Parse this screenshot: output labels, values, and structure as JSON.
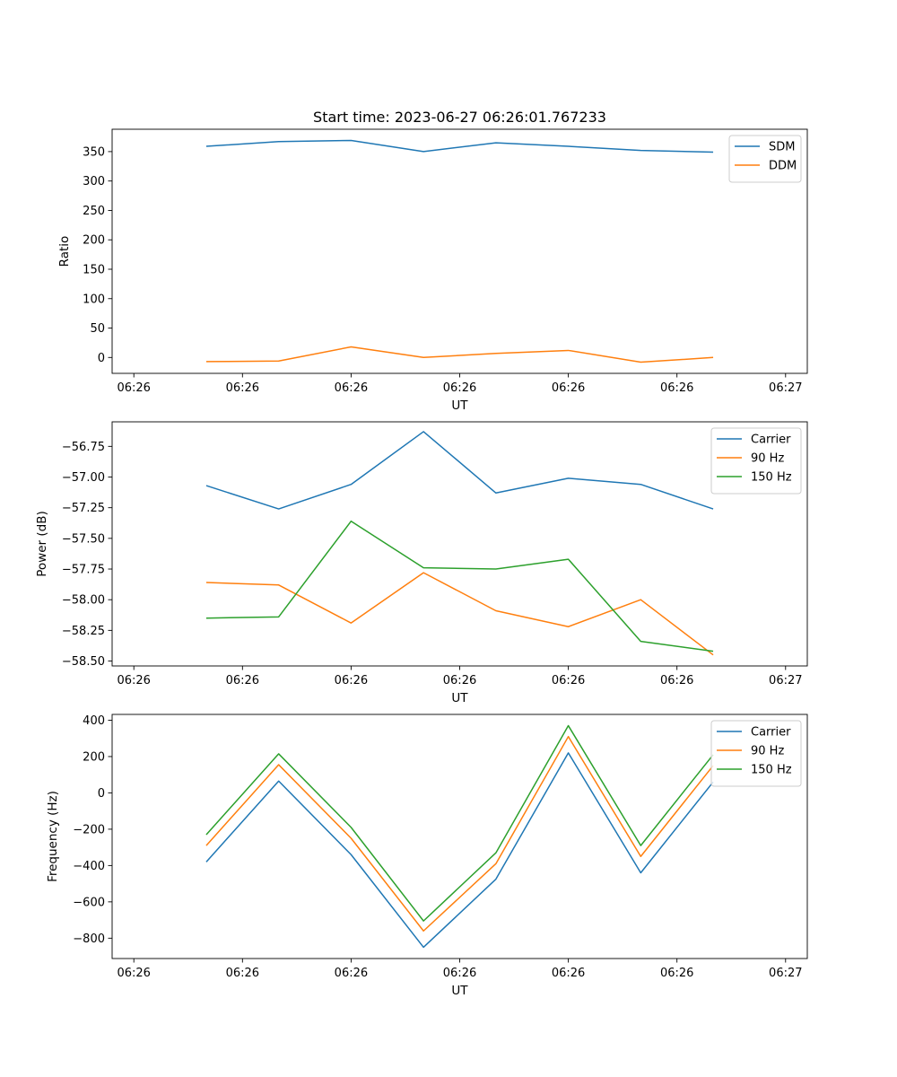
{
  "figure": {
    "title": "Start time: 2023-06-27 06:26:01.767233"
  },
  "chart_data": [
    {
      "type": "line",
      "title": "Start time: 2023-06-27 06:26:01.767233",
      "xlabel": "UT",
      "ylabel": "Ratio",
      "x": [
        1,
        2,
        3,
        4,
        5,
        6,
        7,
        8
      ],
      "xticks": [
        0,
        1.5,
        3,
        4.5,
        6,
        7.5,
        9
      ],
      "xtick_labels": [
        "06:26",
        "06:26",
        "06:26",
        "06:26",
        "06:26",
        "06:26",
        "06:27"
      ],
      "xlim": [
        -0.3,
        9.3
      ],
      "ylim": [
        -27,
        388
      ],
      "yticks": [
        0,
        50,
        100,
        150,
        200,
        250,
        300,
        350
      ],
      "ytick_labels": [
        "0",
        "50",
        "100",
        "150",
        "200",
        "250",
        "300",
        "350"
      ],
      "legend": "top-right",
      "series": [
        {
          "name": "SDM",
          "color": "#1f77b4",
          "values": [
            359,
            367,
            369,
            350,
            365,
            359,
            352,
            349
          ]
        },
        {
          "name": "DDM",
          "color": "#ff7f0e",
          "values": [
            -7,
            -6,
            18,
            0,
            7,
            12,
            -8,
            0
          ]
        }
      ]
    },
    {
      "type": "line",
      "title": "",
      "xlabel": "UT",
      "ylabel": "Power (dB)",
      "x": [
        1,
        2,
        3,
        4,
        5,
        6,
        7,
        8
      ],
      "xticks": [
        0,
        1.5,
        3,
        4.5,
        6,
        7.5,
        9
      ],
      "xtick_labels": [
        "06:26",
        "06:26",
        "06:26",
        "06:26",
        "06:26",
        "06:26",
        "06:27"
      ],
      "xlim": [
        -0.3,
        9.3
      ],
      "ylim": [
        -58.54,
        -56.55
      ],
      "yticks": [
        -58.5,
        -58.25,
        -58.0,
        -57.75,
        -57.5,
        -57.25,
        -57.0,
        -56.75
      ],
      "ytick_labels": [
        "−58.50",
        "−58.25",
        "−58.00",
        "−57.75",
        "−57.50",
        "−57.25",
        "−57.00",
        "−56.75"
      ],
      "legend": "top-right",
      "series": [
        {
          "name": "Carrier",
          "color": "#1f77b4",
          "values": [
            -57.07,
            -57.26,
            -57.06,
            -56.63,
            -57.13,
            -57.01,
            -57.06,
            -57.26
          ]
        },
        {
          "name": "90 Hz",
          "color": "#ff7f0e",
          "values": [
            -57.86,
            -57.88,
            -58.19,
            -57.78,
            -58.09,
            -58.22,
            -58.0,
            -58.45
          ]
        },
        {
          "name": "150 Hz",
          "color": "#2ca02c",
          "values": [
            -58.15,
            -58.14,
            -57.36,
            -57.74,
            -57.75,
            -57.67,
            -58.34,
            -58.42
          ]
        }
      ]
    },
    {
      "type": "line",
      "title": "",
      "xlabel": "UT",
      "ylabel": "Frequency (Hz)",
      "x": [
        1,
        2,
        3,
        4,
        5,
        6,
        7,
        8
      ],
      "xticks": [
        0,
        1.5,
        3,
        4.5,
        6,
        7.5,
        9
      ],
      "xtick_labels": [
        "06:26",
        "06:26",
        "06:26",
        "06:26",
        "06:26",
        "06:26",
        "06:27"
      ],
      "xlim": [
        -0.3,
        9.3
      ],
      "ylim": [
        -912,
        432
      ],
      "yticks": [
        -800,
        -600,
        -400,
        -200,
        0,
        200,
        400
      ],
      "ytick_labels": [
        "−800",
        "−600",
        "−400",
        "−200",
        "0",
        "200",
        "400"
      ],
      "legend": "top-right",
      "series": [
        {
          "name": "Carrier",
          "color": "#1f77b4",
          "values": [
            -380,
            65,
            -340,
            -850,
            -475,
            220,
            -440,
            60
          ]
        },
        {
          "name": "90 Hz",
          "color": "#ff7f0e",
          "values": [
            -290,
            155,
            -250,
            -760,
            -390,
            310,
            -350,
            150
          ]
        },
        {
          "name": "150 Hz",
          "color": "#2ca02c",
          "values": [
            -230,
            215,
            -190,
            -705,
            -330,
            370,
            -290,
            210
          ]
        }
      ]
    }
  ]
}
